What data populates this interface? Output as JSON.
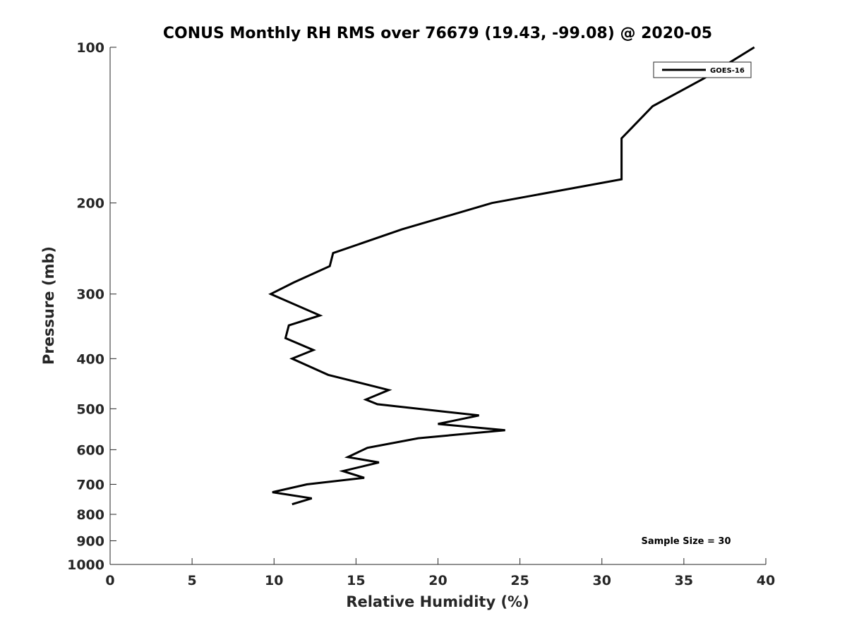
{
  "chart_data": {
    "type": "line",
    "title": "CONUS Monthly RH RMS over 76679 (19.43, -99.08) @ 2020-05",
    "xlabel": "Relative Humidity (%)",
    "ylabel": "Pressure (mb)",
    "xlim": [
      0,
      40
    ],
    "ylim": [
      100,
      1000
    ],
    "y_scale": "log",
    "y_reversed": true,
    "x_ticks": [
      "0",
      "5",
      "10",
      "15",
      "20",
      "25",
      "30",
      "35",
      "40"
    ],
    "y_ticks": [
      "100",
      "200",
      "300",
      "400",
      "500",
      "600",
      "700",
      "800",
      "900",
      "1000"
    ],
    "grid": false,
    "legend_position": "top-right",
    "series": [
      {
        "name": "GOES-16",
        "color": "#000000",
        "x": [
          39.3,
          36.2,
          33.1,
          31.2,
          31.2,
          23.3,
          17.8,
          13.6,
          13.4,
          11.2,
          9.8,
          12.8,
          10.9,
          10.7,
          12.4,
          11.1,
          13.3,
          17.0,
          15.6,
          16.3,
          22.5,
          20.0,
          24.1,
          18.8,
          15.7,
          14.5,
          16.4,
          14.2,
          15.5,
          12.0,
          9.9,
          12.3,
          11.1
        ],
        "y": [
          100,
          115,
          130,
          150,
          180,
          200,
          225,
          250,
          265,
          285,
          300,
          330,
          345,
          365,
          385,
          400,
          430,
          460,
          480,
          490,
          515,
          535,
          550,
          570,
          595,
          620,
          635,
          660,
          680,
          700,
          725,
          745,
          765
        ]
      }
    ],
    "annotations": [
      "Sample Size = 30"
    ]
  },
  "colors": {
    "axis": "#262626",
    "line": "#000000",
    "background": "#ffffff"
  }
}
